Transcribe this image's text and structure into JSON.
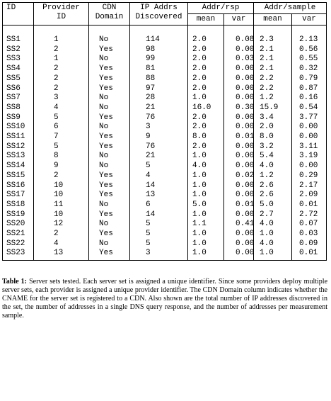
{
  "table": {
    "header": {
      "id": "ID",
      "provider_id": "Provider ID",
      "cdn_domain": "CDN Domain",
      "ip_addrs": "IP Addrs Discovered",
      "groups": [
        {
          "title": "Addr/rsp",
          "columns": [
            "mean",
            "var"
          ]
        },
        {
          "title": "Addr/sample",
          "columns": [
            "mean",
            "var"
          ]
        }
      ]
    },
    "rows": [
      [
        "SS1",
        "1",
        "No",
        "114",
        "2.0",
        "0.08",
        "2.3",
        "2.13"
      ],
      [
        "SS2",
        "2",
        "Yes",
        "98",
        "2.0",
        "0.00",
        "2.1",
        "0.56"
      ],
      [
        "SS3",
        "1",
        "No",
        "99",
        "2.0",
        "0.03",
        "2.1",
        "0.55"
      ],
      [
        "SS4",
        "2",
        "Yes",
        "81",
        "2.0",
        "0.00",
        "2.1",
        "0.32"
      ],
      [
        "SS5",
        "2",
        "Yes",
        "88",
        "2.0",
        "0.00",
        "2.2",
        "0.79"
      ],
      [
        "SS6",
        "2",
        "Yes",
        "97",
        "2.0",
        "0.00",
        "2.2",
        "0.87"
      ],
      [
        "SS7",
        "3",
        "No",
        "28",
        "1.0",
        "0.00",
        "1.2",
        "0.16"
      ],
      [
        "SS8",
        "4",
        "No",
        "21",
        "16.0",
        "0.30",
        "15.9",
        "0.54"
      ],
      [
        "SS9",
        "5",
        "Yes",
        "76",
        "2.0",
        "0.00",
        "3.4",
        "3.77"
      ],
      [
        "SS10",
        "6",
        "No",
        "3",
        "2.0",
        "0.00",
        "2.0",
        "0.00"
      ],
      [
        "SS11",
        "7",
        "Yes",
        "9",
        "8.0",
        "0.01",
        "8.0",
        "0.00"
      ],
      [
        "SS12",
        "5",
        "Yes",
        "76",
        "2.0",
        "0.00",
        "3.2",
        "3.11"
      ],
      [
        "SS13",
        "8",
        "No",
        "21",
        "1.0",
        "0.00",
        "5.4",
        "3.19"
      ],
      [
        "SS14",
        "9",
        "No",
        "5",
        "4.0",
        "0.00",
        "4.0",
        "0.00"
      ],
      [
        "SS15",
        "2",
        "Yes",
        "4",
        "1.0",
        "0.02",
        "1.2",
        "0.29"
      ],
      [
        "SS16",
        "10",
        "Yes",
        "14",
        "1.0",
        "0.00",
        "2.6",
        "2.17"
      ],
      [
        "SS17",
        "10",
        "Yes",
        "13",
        "1.0",
        "0.00",
        "2.6",
        "2.09"
      ],
      [
        "SS18",
        "11",
        "No",
        "6",
        "5.0",
        "0.01",
        "5.0",
        "0.01"
      ],
      [
        "SS19",
        "10",
        "Yes",
        "14",
        "1.0",
        "0.00",
        "2.7",
        "2.72"
      ],
      [
        "SS20",
        "12",
        "No",
        "5",
        "1.1",
        "0.41",
        "4.0",
        "0.07"
      ],
      [
        "SS21",
        "2",
        "Yes",
        "5",
        "1.0",
        "0.00",
        "1.0",
        "0.03"
      ],
      [
        "SS22",
        "4",
        "No",
        "5",
        "1.0",
        "0.00",
        "4.0",
        "0.09"
      ],
      [
        "SS23",
        "13",
        "Yes",
        "3",
        "1.0",
        "0.00",
        "1.0",
        "0.01"
      ]
    ]
  },
  "caption": {
    "label": "Table 1:",
    "text": "Server sets tested. Each server set is assigned a unique identifier. Since some providers deploy multiple server sets, each provider is assigned a unique provider identifier. The CDN Domain column indicates whether the CNAME for the server set is registered to a CDN. Also shown are the total number of IP addresses discovered in the set, the number of addresses in a single DNS query response, and the number of addresses per measurement sample."
  }
}
